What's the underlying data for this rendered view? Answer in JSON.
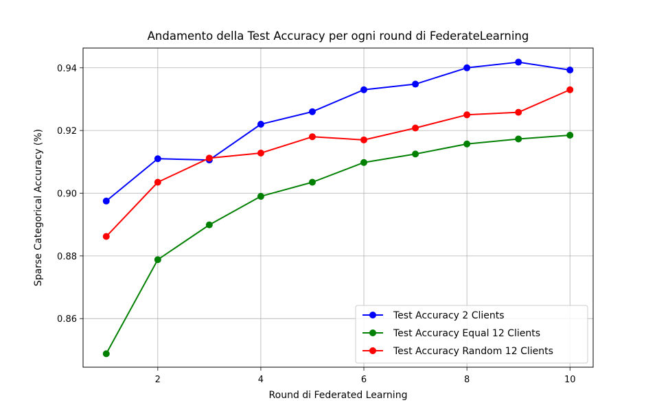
{
  "chart_data": {
    "type": "line",
    "title": "Andamento della Test Accuracy per ogni round di FederateLearning",
    "xlabel": "Round di Federated Learning",
    "ylabel": "Sparse Categorical Accuracy (%)",
    "x": [
      1,
      2,
      3,
      4,
      5,
      6,
      7,
      8,
      9,
      10
    ],
    "xlim": [
      0.55,
      10.45
    ],
    "ylim": [
      0.8445,
      0.9463
    ],
    "xticks": [
      2,
      4,
      6,
      8,
      10
    ],
    "yticks": [
      0.86,
      0.88,
      0.9,
      0.92,
      0.94
    ],
    "ytick_labels": [
      "0.86",
      "0.88",
      "0.90",
      "0.92",
      "0.94"
    ],
    "grid": true,
    "legend_position": "lower-right",
    "series": [
      {
        "name": "Test Accuracy 2 Clients",
        "color": "#0000ff",
        "values": [
          0.8975,
          0.911,
          0.9106,
          0.922,
          0.926,
          0.933,
          0.9348,
          0.94,
          0.9418,
          0.9393
        ]
      },
      {
        "name": "Test Accuracy Equal 12 Clients",
        "color": "#008000",
        "values": [
          0.8488,
          0.8788,
          0.8899,
          0.899,
          0.9035,
          0.9098,
          0.9125,
          0.9157,
          0.9173,
          0.9185
        ]
      },
      {
        "name": "Test Accuracy Random 12 Clients",
        "color": "#ff0000",
        "values": [
          0.8862,
          0.9035,
          0.9112,
          0.9128,
          0.918,
          0.917,
          0.9208,
          0.925,
          0.9258,
          0.933
        ]
      }
    ]
  }
}
